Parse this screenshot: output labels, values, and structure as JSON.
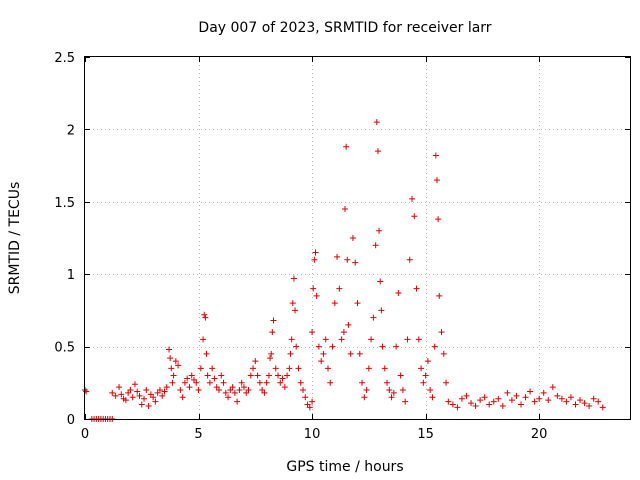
{
  "chart_data": {
    "type": "scatter",
    "title": "Day 007 of 2023, SRMTID for receiver larr",
    "xlabel": "GPS time / hours",
    "ylabel": "SRMTID / TECUs",
    "xlim": [
      0,
      24
    ],
    "ylim": [
      0,
      2.5
    ],
    "xticks": [
      0,
      5,
      10,
      15,
      20
    ],
    "xtick_labels": [
      "0",
      "5",
      "10",
      "15",
      "20"
    ],
    "yticks": [
      0,
      0.5,
      1,
      1.5,
      2,
      2.5
    ],
    "ytick_labels": [
      "0",
      "0.5",
      "1",
      "1.5",
      "2",
      "2.5"
    ],
    "grid": true,
    "marker": "+",
    "series": [
      {
        "name": "SRMTID",
        "color": "#e00000",
        "x": [
          0.0,
          0.05,
          0.3,
          0.4,
          0.5,
          0.6,
          0.7,
          0.8,
          0.9,
          1.0,
          1.1,
          1.2,
          1.2,
          1.35,
          1.5,
          1.6,
          1.7,
          1.8,
          1.9,
          2.0,
          2.1,
          2.2,
          2.3,
          2.4,
          2.5,
          2.6,
          2.7,
          2.8,
          2.9,
          3.0,
          3.1,
          3.2,
          3.3,
          3.4,
          3.5,
          3.6,
          3.7,
          3.75,
          3.8,
          3.85,
          3.9,
          4.0,
          4.1,
          4.2,
          4.3,
          4.4,
          4.5,
          4.6,
          4.7,
          4.8,
          4.9,
          5.0,
          5.1,
          5.2,
          5.25,
          5.3,
          5.35,
          5.4,
          5.5,
          5.6,
          5.7,
          5.8,
          5.9,
          6.0,
          6.1,
          6.2,
          6.3,
          6.4,
          6.5,
          6.6,
          6.7,
          6.8,
          6.9,
          7.0,
          7.1,
          7.2,
          7.3,
          7.4,
          7.5,
          7.6,
          7.7,
          7.8,
          7.9,
          8.0,
          8.1,
          8.15,
          8.2,
          8.25,
          8.3,
          8.4,
          8.5,
          8.6,
          8.7,
          8.8,
          8.9,
          9.0,
          9.05,
          9.1,
          9.15,
          9.2,
          9.25,
          9.3,
          9.4,
          9.5,
          9.6,
          9.7,
          9.8,
          9.9,
          10.0,
          10.0,
          10.05,
          10.1,
          10.15,
          10.2,
          10.3,
          10.4,
          10.5,
          10.6,
          10.7,
          10.8,
          10.9,
          11.0,
          11.1,
          11.2,
          11.3,
          11.4,
          11.45,
          11.5,
          11.55,
          11.6,
          11.7,
          11.8,
          11.9,
          12.0,
          12.1,
          12.2,
          12.3,
          12.4,
          12.5,
          12.6,
          12.7,
          12.8,
          12.85,
          12.9,
          12.95,
          13.0,
          13.05,
          13.1,
          13.2,
          13.3,
          13.4,
          13.5,
          13.6,
          13.7,
          13.8,
          13.9,
          14.0,
          14.1,
          14.2,
          14.3,
          14.4,
          14.5,
          14.6,
          14.7,
          14.8,
          14.9,
          15.0,
          15.1,
          15.2,
          15.3,
          15.4,
          15.45,
          15.5,
          15.55,
          15.6,
          15.7,
          15.8,
          15.9,
          16.0,
          16.2,
          16.4,
          16.6,
          16.8,
          17.0,
          17.2,
          17.4,
          17.6,
          17.8,
          18.0,
          18.2,
          18.4,
          18.6,
          18.8,
          19.0,
          19.2,
          19.4,
          19.6,
          19.8,
          20.0,
          20.2,
          20.4,
          20.6,
          20.8,
          21.0,
          21.2,
          21.4,
          21.6,
          21.8,
          22.0,
          22.2,
          22.4,
          22.6,
          22.8
        ],
        "y": [
          0.2,
          0.19,
          0.0,
          0.0,
          0.0,
          0.0,
          0.0,
          0.0,
          0.0,
          0.0,
          0.0,
          0.0,
          0.18,
          0.16,
          0.22,
          0.17,
          0.14,
          0.13,
          0.18,
          0.2,
          0.15,
          0.24,
          0.19,
          0.16,
          0.1,
          0.14,
          0.2,
          0.09,
          0.17,
          0.15,
          0.12,
          0.18,
          0.2,
          0.16,
          0.19,
          0.22,
          0.48,
          0.42,
          0.35,
          0.25,
          0.3,
          0.4,
          0.37,
          0.2,
          0.15,
          0.25,
          0.28,
          0.22,
          0.3,
          0.27,
          0.25,
          0.2,
          0.35,
          0.55,
          0.72,
          0.7,
          0.45,
          0.3,
          0.25,
          0.35,
          0.28,
          0.22,
          0.2,
          0.3,
          0.25,
          0.18,
          0.15,
          0.2,
          0.22,
          0.18,
          0.12,
          0.2,
          0.25,
          0.22,
          0.18,
          0.2,
          0.3,
          0.35,
          0.4,
          0.3,
          0.25,
          0.2,
          0.18,
          0.25,
          0.3,
          0.42,
          0.45,
          0.6,
          0.68,
          0.35,
          0.3,
          0.25,
          0.28,
          0.22,
          0.3,
          0.35,
          0.45,
          0.55,
          0.8,
          0.97,
          0.75,
          0.5,
          0.35,
          0.25,
          0.2,
          0.15,
          0.1,
          0.08,
          0.12,
          0.6,
          0.9,
          1.1,
          1.15,
          0.85,
          0.5,
          0.4,
          0.45,
          0.55,
          0.35,
          0.25,
          0.5,
          0.8,
          1.12,
          0.9,
          0.55,
          0.6,
          1.45,
          1.88,
          1.1,
          0.65,
          0.45,
          1.25,
          1.08,
          0.8,
          0.45,
          0.25,
          0.15,
          0.2,
          0.35,
          0.55,
          0.7,
          1.2,
          2.05,
          1.85,
          1.3,
          0.95,
          0.75,
          0.5,
          0.35,
          0.25,
          0.2,
          0.15,
          0.18,
          0.5,
          0.87,
          0.3,
          0.2,
          0.12,
          0.55,
          1.1,
          1.52,
          1.4,
          0.9,
          0.55,
          0.35,
          0.25,
          0.3,
          0.4,
          0.2,
          0.15,
          0.5,
          1.82,
          1.65,
          1.38,
          0.85,
          0.6,
          0.45,
          0.25,
          0.12,
          0.1,
          0.08,
          0.14,
          0.16,
          0.11,
          0.09,
          0.13,
          0.15,
          0.1,
          0.12,
          0.14,
          0.09,
          0.18,
          0.13,
          0.16,
          0.1,
          0.15,
          0.19,
          0.12,
          0.14,
          0.18,
          0.13,
          0.22,
          0.16,
          0.14,
          0.12,
          0.15,
          0.1,
          0.13,
          0.11,
          0.09,
          0.14,
          0.12,
          0.08
        ]
      }
    ]
  }
}
